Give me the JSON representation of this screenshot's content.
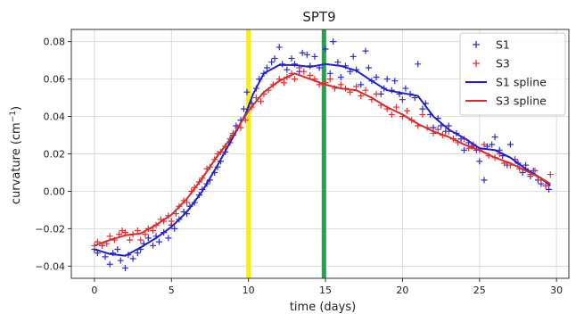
{
  "chart_data": {
    "type": "scatter",
    "title": "SPT9",
    "xlabel": "time (days)",
    "ylabel_main": "curvature (cm",
    "ylabel_sup": "−1",
    "ylabel_tail": ")",
    "xlim": [
      -1.5,
      30.8
    ],
    "ylim": [
      -0.0465,
      0.0865
    ],
    "grid": true,
    "x_ticks": [
      0,
      5,
      10,
      15,
      20,
      25,
      30
    ],
    "y_ticks": [
      -0.04,
      -0.02,
      0.0,
      0.02,
      0.04,
      0.06,
      0.08
    ],
    "y_tick_labels": [
      "−0.04",
      "−0.02",
      "0.00",
      "0.02",
      "0.04",
      "0.06",
      "0.08"
    ],
    "vertical_lines": [
      {
        "x": 10.0,
        "color": "#f5ee1c"
      },
      {
        "x": 14.9,
        "color": "#1fa64a"
      }
    ],
    "legend_position": "top-right",
    "series": [
      {
        "name": "S1",
        "kind": "scatter",
        "marker": "+",
        "color": "#2b2bd1",
        "points": [
          [
            0.0,
            -0.031
          ],
          [
            0.2,
            -0.033
          ],
          [
            0.5,
            -0.029
          ],
          [
            0.7,
            -0.035
          ],
          [
            1.0,
            -0.039
          ],
          [
            1.2,
            -0.033
          ],
          [
            1.5,
            -0.031
          ],
          [
            1.7,
            -0.037
          ],
          [
            2.0,
            -0.041
          ],
          [
            2.2,
            -0.034
          ],
          [
            2.5,
            -0.036
          ],
          [
            2.8,
            -0.033
          ],
          [
            3.0,
            -0.031
          ],
          [
            3.2,
            -0.028
          ],
          [
            3.5,
            -0.025
          ],
          [
            3.8,
            -0.029
          ],
          [
            4.0,
            -0.024
          ],
          [
            4.2,
            -0.027
          ],
          [
            4.5,
            -0.022
          ],
          [
            4.8,
            -0.025
          ],
          [
            5.0,
            -0.018
          ],
          [
            5.2,
            -0.02
          ],
          [
            5.5,
            -0.015
          ],
          [
            5.8,
            -0.011
          ],
          [
            6.0,
            -0.012
          ],
          [
            6.2,
            -0.008
          ],
          [
            6.5,
            -0.006
          ],
          [
            6.8,
            -0.002
          ],
          [
            7.0,
            0.001
          ],
          [
            7.3,
            0.004
          ],
          [
            7.5,
            0.006
          ],
          [
            7.8,
            0.01
          ],
          [
            8.0,
            0.013
          ],
          [
            8.2,
            0.016
          ],
          [
            8.5,
            0.021
          ],
          [
            8.8,
            0.026
          ],
          [
            9.0,
            0.03
          ],
          [
            9.2,
            0.035
          ],
          [
            9.5,
            0.038
          ],
          [
            9.7,
            0.044
          ],
          [
            9.9,
            0.053
          ],
          [
            10.2,
            0.047
          ],
          [
            10.5,
            0.055
          ],
          [
            10.7,
            0.06
          ],
          [
            11.0,
            0.063
          ],
          [
            11.2,
            0.066
          ],
          [
            11.5,
            0.069
          ],
          [
            11.7,
            0.071
          ],
          [
            12.0,
            0.077
          ],
          [
            12.2,
            0.068
          ],
          [
            12.5,
            0.065
          ],
          [
            12.8,
            0.071
          ],
          [
            13.0,
            0.068
          ],
          [
            13.3,
            0.064
          ],
          [
            13.5,
            0.074
          ],
          [
            13.8,
            0.073
          ],
          [
            14.0,
            0.067
          ],
          [
            14.3,
            0.072
          ],
          [
            14.6,
            0.066
          ],
          [
            15.0,
            0.076
          ],
          [
            15.3,
            0.063
          ],
          [
            15.5,
            0.08
          ],
          [
            15.8,
            0.069
          ],
          [
            16.0,
            0.061
          ],
          [
            16.3,
            0.067
          ],
          [
            16.6,
            0.064
          ],
          [
            16.8,
            0.072
          ],
          [
            17.0,
            0.065
          ],
          [
            17.3,
            0.057
          ],
          [
            17.6,
            0.075
          ],
          [
            17.8,
            0.066
          ],
          [
            18.0,
            0.059
          ],
          [
            18.3,
            0.061
          ],
          [
            18.6,
            0.052
          ],
          [
            18.8,
            0.055
          ],
          [
            19.0,
            0.06
          ],
          [
            19.3,
            0.054
          ],
          [
            19.5,
            0.059
          ],
          [
            19.8,
            0.052
          ],
          [
            20.0,
            0.049
          ],
          [
            20.2,
            0.055
          ],
          [
            20.5,
            0.052
          ],
          [
            20.8,
            0.05
          ],
          [
            21.0,
            0.068
          ],
          [
            21.3,
            0.044
          ],
          [
            21.5,
            0.047
          ],
          [
            21.8,
            0.041
          ],
          [
            22.0,
            0.034
          ],
          [
            22.3,
            0.039
          ],
          [
            22.5,
            0.035
          ],
          [
            22.8,
            0.032
          ],
          [
            23.0,
            0.035
          ],
          [
            23.3,
            0.028
          ],
          [
            23.5,
            0.031
          ],
          [
            23.8,
            0.028
          ],
          [
            24.0,
            0.022
          ],
          [
            24.3,
            0.026
          ],
          [
            24.5,
            0.024
          ],
          [
            24.8,
            0.022
          ],
          [
            25.0,
            0.016
          ],
          [
            25.3,
            0.006
          ],
          [
            25.5,
            0.024
          ],
          [
            25.8,
            0.025
          ],
          [
            26.0,
            0.029
          ],
          [
            26.3,
            0.022
          ],
          [
            26.5,
            0.019
          ],
          [
            26.8,
            0.014
          ],
          [
            27.0,
            0.025
          ],
          [
            27.3,
            0.017
          ],
          [
            27.5,
            0.015
          ],
          [
            27.8,
            0.01
          ],
          [
            28.0,
            0.014
          ],
          [
            28.3,
            0.008
          ],
          [
            28.5,
            0.011
          ],
          [
            28.8,
            0.006
          ],
          [
            29.0,
            0.004
          ],
          [
            29.3,
            0.003
          ],
          [
            29.5,
            0.001
          ]
        ]
      },
      {
        "name": "S3",
        "kind": "scatter",
        "marker": "+",
        "color": "#e03131",
        "points": [
          [
            0.0,
            -0.029
          ],
          [
            0.2,
            -0.027
          ],
          [
            0.5,
            -0.029
          ],
          [
            0.8,
            -0.028
          ],
          [
            1.0,
            -0.024
          ],
          [
            1.3,
            -0.026
          ],
          [
            1.6,
            -0.023
          ],
          [
            1.8,
            -0.021
          ],
          [
            2.0,
            -0.022
          ],
          [
            2.3,
            -0.026
          ],
          [
            2.5,
            -0.023
          ],
          [
            2.8,
            -0.021
          ],
          [
            3.0,
            -0.026
          ],
          [
            3.3,
            -0.023
          ],
          [
            3.5,
            -0.02
          ],
          [
            3.8,
            -0.021
          ],
          [
            4.0,
            -0.018
          ],
          [
            4.3,
            -0.015
          ],
          [
            4.5,
            -0.016
          ],
          [
            4.8,
            -0.013
          ],
          [
            5.0,
            -0.016
          ],
          [
            5.3,
            -0.012
          ],
          [
            5.5,
            -0.008
          ],
          [
            5.8,
            -0.005
          ],
          [
            6.0,
            -0.006
          ],
          [
            6.3,
            0.0
          ],
          [
            6.5,
            0.002
          ],
          [
            6.8,
            0.005
          ],
          [
            7.0,
            0.007
          ],
          [
            7.3,
            0.012
          ],
          [
            7.5,
            0.013
          ],
          [
            7.8,
            0.017
          ],
          [
            8.0,
            0.02
          ],
          [
            8.2,
            0.021
          ],
          [
            8.5,
            0.024
          ],
          [
            8.8,
            0.028
          ],
          [
            9.0,
            0.031
          ],
          [
            9.3,
            0.034
          ],
          [
            9.5,
            0.034
          ],
          [
            9.8,
            0.038
          ],
          [
            10.2,
            0.045
          ],
          [
            10.5,
            0.05
          ],
          [
            10.8,
            0.048
          ],
          [
            11.0,
            0.052
          ],
          [
            11.3,
            0.054
          ],
          [
            11.6,
            0.057
          ],
          [
            12.0,
            0.06
          ],
          [
            12.3,
            0.058
          ],
          [
            12.5,
            0.061
          ],
          [
            12.8,
            0.063
          ],
          [
            13.0,
            0.06
          ],
          [
            13.3,
            0.066
          ],
          [
            13.6,
            0.064
          ],
          [
            14.0,
            0.062
          ],
          [
            14.3,
            0.06
          ],
          [
            14.6,
            0.057
          ],
          [
            15.0,
            0.058
          ],
          [
            15.3,
            0.06
          ],
          [
            15.6,
            0.055
          ],
          [
            16.0,
            0.057
          ],
          [
            16.3,
            0.055
          ],
          [
            16.6,
            0.053
          ],
          [
            17.0,
            0.056
          ],
          [
            17.3,
            0.051
          ],
          [
            17.6,
            0.054
          ],
          [
            18.0,
            0.049
          ],
          [
            18.3,
            0.052
          ],
          [
            18.6,
            0.046
          ],
          [
            19.0,
            0.044
          ],
          [
            19.3,
            0.041
          ],
          [
            19.6,
            0.045
          ],
          [
            20.0,
            0.04
          ],
          [
            20.3,
            0.043
          ],
          [
            20.6,
            0.038
          ],
          [
            21.0,
            0.035
          ],
          [
            21.3,
            0.041
          ],
          [
            21.6,
            0.034
          ],
          [
            22.0,
            0.031
          ],
          [
            22.3,
            0.033
          ],
          [
            22.6,
            0.03
          ],
          [
            23.0,
            0.032
          ],
          [
            23.3,
            0.028
          ],
          [
            23.6,
            0.026
          ],
          [
            24.0,
            0.028
          ],
          [
            24.3,
            0.023
          ],
          [
            24.6,
            0.025
          ],
          [
            25.0,
            0.022
          ],
          [
            25.3,
            0.025
          ],
          [
            25.6,
            0.019
          ],
          [
            26.0,
            0.018
          ],
          [
            26.3,
            0.02
          ],
          [
            26.6,
            0.015
          ],
          [
            27.0,
            0.014
          ],
          [
            27.3,
            0.017
          ],
          [
            27.6,
            0.012
          ],
          [
            28.0,
            0.012
          ],
          [
            28.3,
            0.009
          ],
          [
            28.6,
            0.011
          ],
          [
            29.0,
            0.006
          ],
          [
            29.3,
            0.003
          ],
          [
            29.6,
            0.009
          ]
        ]
      },
      {
        "name": "S1 spline",
        "kind": "line",
        "color": "#1f1fd6",
        "points": [
          [
            0.0,
            -0.031
          ],
          [
            1.0,
            -0.0335
          ],
          [
            2.0,
            -0.0345
          ],
          [
            3.0,
            -0.03
          ],
          [
            4.0,
            -0.025
          ],
          [
            5.0,
            -0.019
          ],
          [
            6.0,
            -0.011
          ],
          [
            7.0,
            0.0
          ],
          [
            8.0,
            0.014
          ],
          [
            9.0,
            0.029
          ],
          [
            9.8,
            0.041
          ],
          [
            10.3,
            0.052
          ],
          [
            11.0,
            0.063
          ],
          [
            12.0,
            0.0675
          ],
          [
            13.0,
            0.0675
          ],
          [
            14.0,
            0.0665
          ],
          [
            15.0,
            0.068
          ],
          [
            16.0,
            0.067
          ],
          [
            17.0,
            0.0645
          ],
          [
            18.0,
            0.059
          ],
          [
            19.0,
            0.054
          ],
          [
            20.0,
            0.0525
          ],
          [
            21.0,
            0.051
          ],
          [
            22.0,
            0.04
          ],
          [
            23.0,
            0.033
          ],
          [
            24.0,
            0.0285
          ],
          [
            25.0,
            0.023
          ],
          [
            26.0,
            0.022
          ],
          [
            27.0,
            0.018
          ],
          [
            28.0,
            0.012
          ],
          [
            29.0,
            0.007
          ],
          [
            29.6,
            0.003
          ]
        ]
      },
      {
        "name": "S3 spline",
        "kind": "line",
        "color": "#d92b2b",
        "points": [
          [
            0.0,
            -0.029
          ],
          [
            1.0,
            -0.026
          ],
          [
            2.0,
            -0.0235
          ],
          [
            3.0,
            -0.0225
          ],
          [
            4.0,
            -0.018
          ],
          [
            5.0,
            -0.0125
          ],
          [
            6.0,
            -0.004
          ],
          [
            7.0,
            0.007
          ],
          [
            8.0,
            0.019
          ],
          [
            9.0,
            0.03
          ],
          [
            10.0,
            0.043
          ],
          [
            11.0,
            0.053
          ],
          [
            12.0,
            0.059
          ],
          [
            13.0,
            0.063
          ],
          [
            14.0,
            0.06
          ],
          [
            15.0,
            0.057
          ],
          [
            16.0,
            0.055
          ],
          [
            17.0,
            0.054
          ],
          [
            18.0,
            0.05
          ],
          [
            19.0,
            0.045
          ],
          [
            20.0,
            0.041
          ],
          [
            21.0,
            0.036
          ],
          [
            22.0,
            0.032
          ],
          [
            23.0,
            0.029
          ],
          [
            24.0,
            0.025
          ],
          [
            25.0,
            0.022
          ],
          [
            26.0,
            0.018
          ],
          [
            27.0,
            0.015
          ],
          [
            28.0,
            0.011
          ],
          [
            29.0,
            0.007
          ],
          [
            29.6,
            0.004
          ]
        ]
      }
    ]
  }
}
